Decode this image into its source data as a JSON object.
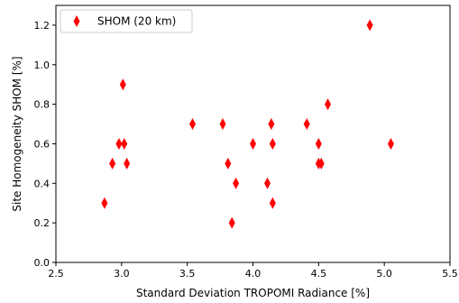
{
  "chart_data": {
    "type": "scatter",
    "title": "",
    "xlabel": "Standard Deviation TROPOMI Radiance [%]",
    "ylabel": "Site Homogeneity SHOM [%]",
    "xlim": [
      2.5,
      5.5
    ],
    "ylim": [
      0.0,
      1.3
    ],
    "xticks": [
      "2.5",
      "3.0",
      "3.5",
      "4.0",
      "4.5",
      "5.0",
      "5.5"
    ],
    "yticks": [
      "0.0",
      "0.2",
      "0.4",
      "0.6",
      "0.8",
      "1.0",
      "1.2"
    ],
    "grid": false,
    "legend_position": "top-left",
    "series": [
      {
        "name": "SHOM (20 km)",
        "color": "#ff0000",
        "marker": "diamond",
        "x": [
          2.87,
          2.93,
          2.98,
          3.01,
          3.02,
          3.04,
          3.54,
          3.77,
          3.81,
          3.84,
          3.87,
          4.0,
          4.11,
          4.14,
          4.15,
          4.15,
          4.41,
          4.5,
          4.5,
          4.52,
          4.57,
          4.89,
          5.05
        ],
        "y": [
          0.3,
          0.5,
          0.6,
          0.9,
          0.6,
          0.5,
          0.7,
          0.7,
          0.5,
          0.2,
          0.4,
          0.6,
          0.4,
          0.7,
          0.6,
          0.3,
          0.7,
          0.6,
          0.5,
          0.5,
          0.8,
          1.2,
          0.6
        ]
      }
    ]
  }
}
